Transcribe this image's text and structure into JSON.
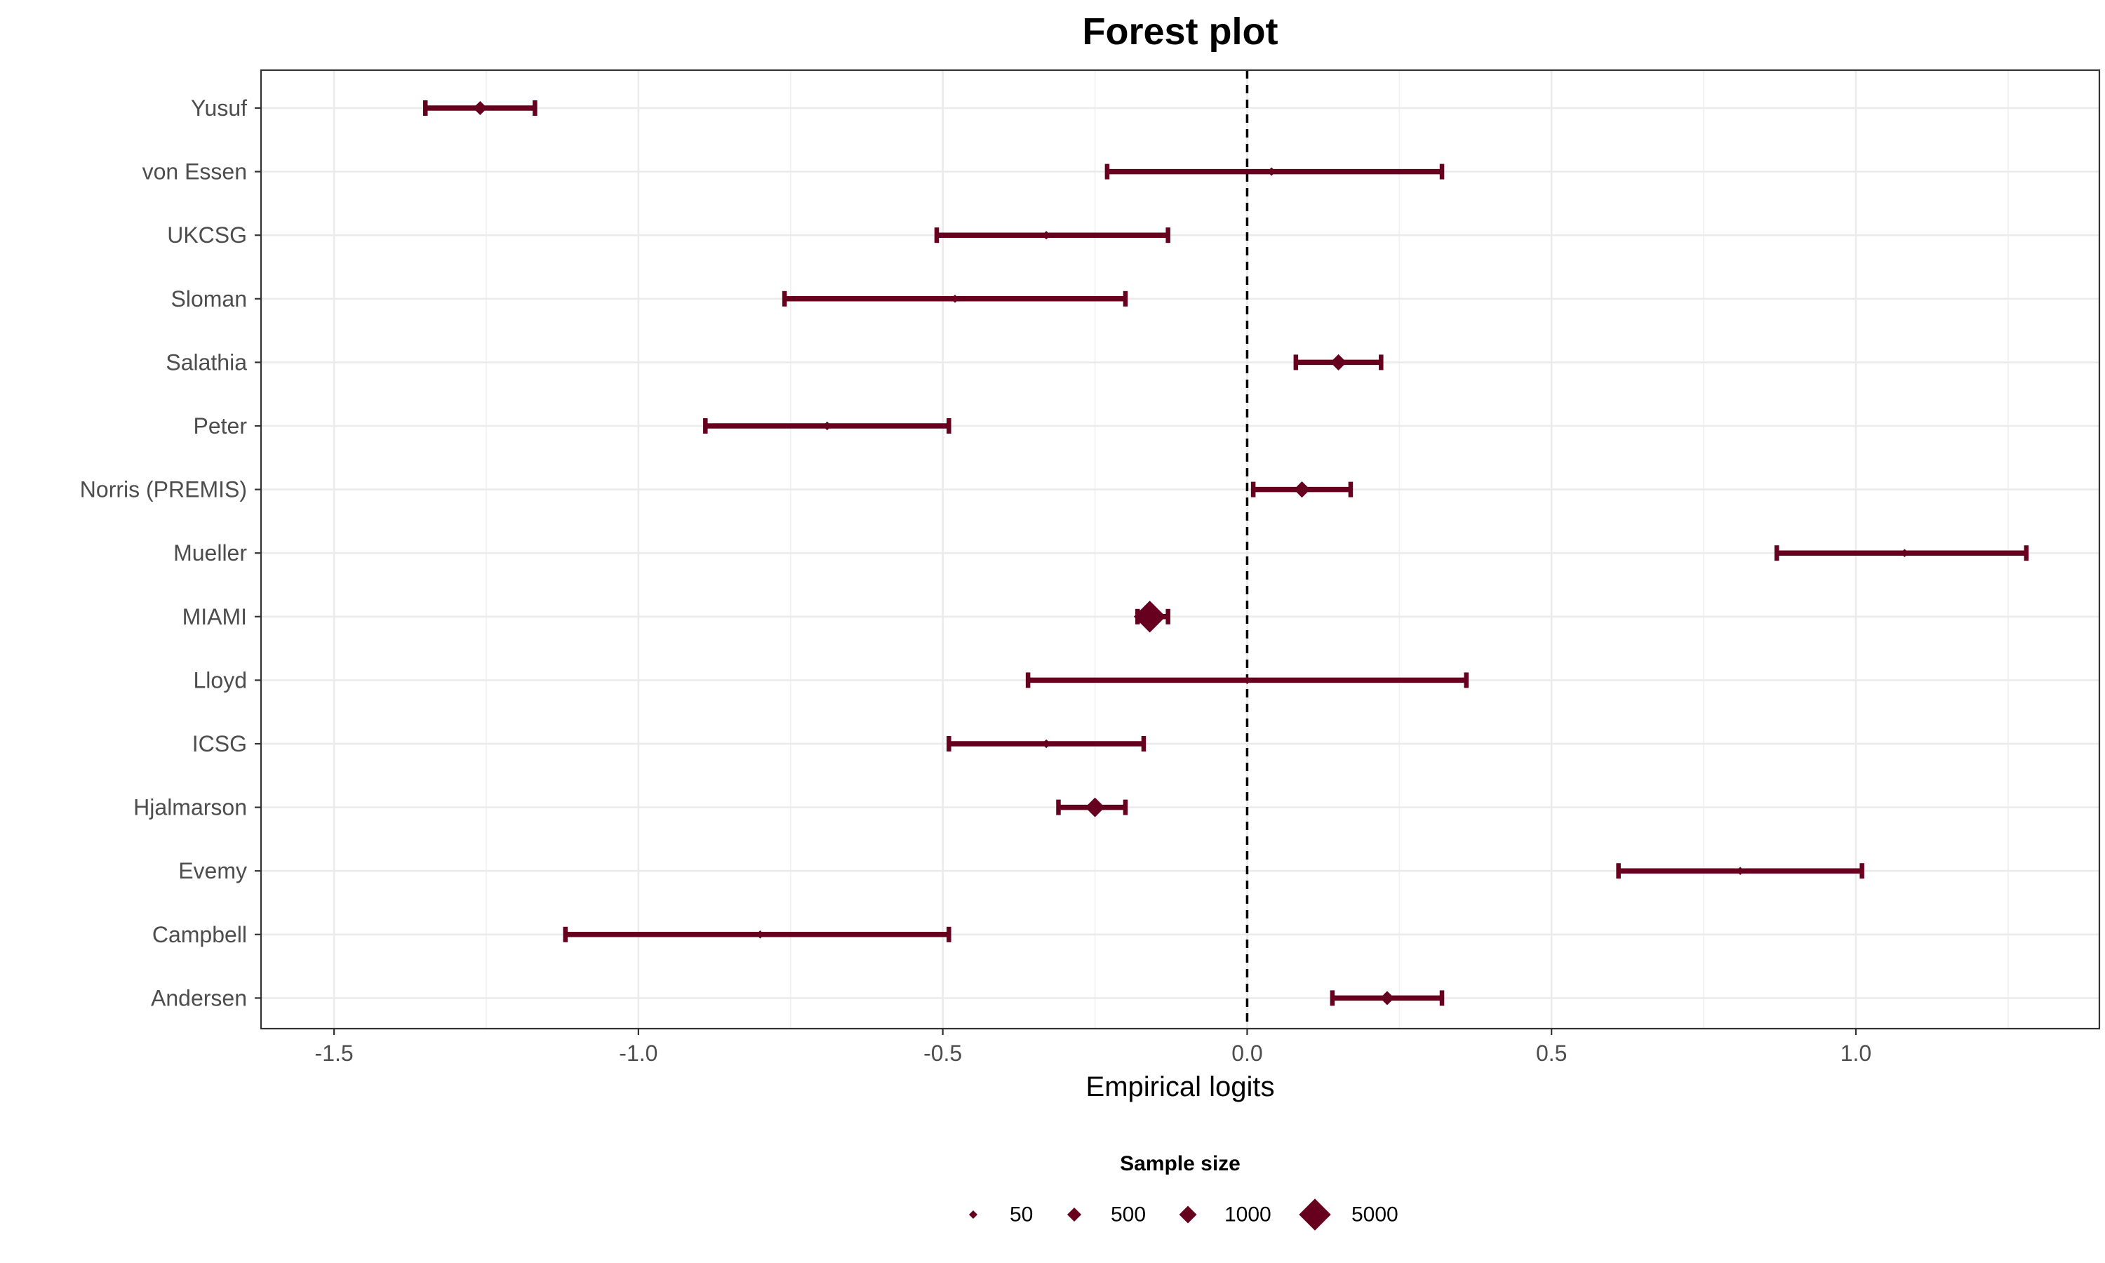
{
  "chart_data": {
    "type": "forest",
    "title": "Forest plot",
    "xlabel": "Empirical logits",
    "ylabel": "",
    "xlim": [
      -1.62,
      1.4
    ],
    "x_ticks": [
      -1.5,
      -1.0,
      -0.5,
      0.0,
      0.5,
      1.0
    ],
    "x_tick_labels": [
      "-1.5",
      "-1.0",
      "-0.5",
      "0.0",
      "0.5",
      "1.0"
    ],
    "reference_line": 0.0,
    "grid": true,
    "color": "#67001f",
    "studies": [
      {
        "name": "Yusuf",
        "estimate": -1.26,
        "lower": -1.35,
        "upper": -1.17,
        "n": 500
      },
      {
        "name": "von Essen",
        "estimate": 0.04,
        "lower": -0.23,
        "upper": 0.32,
        "n": 50
      },
      {
        "name": "UKCSG",
        "estimate": -0.33,
        "lower": -0.51,
        "upper": -0.13,
        "n": 50
      },
      {
        "name": "Sloman",
        "estimate": -0.48,
        "lower": -0.76,
        "upper": -0.2,
        "n": 40
      },
      {
        "name": "Salathia",
        "estimate": 0.15,
        "lower": 0.08,
        "upper": 0.22,
        "n": 800
      },
      {
        "name": "Peter",
        "estimate": -0.69,
        "lower": -0.89,
        "upper": -0.49,
        "n": 60
      },
      {
        "name": "Norris (PREMIS)",
        "estimate": 0.09,
        "lower": 0.01,
        "upper": 0.17,
        "n": 800
      },
      {
        "name": "Mueller",
        "estimate": 1.08,
        "lower": 0.87,
        "upper": 1.28,
        "n": 40
      },
      {
        "name": "MIAMI",
        "estimate": -0.16,
        "lower": -0.18,
        "upper": -0.13,
        "n": 5000
      },
      {
        "name": "Lloyd",
        "estimate": 0.0,
        "lower": -0.36,
        "upper": 0.36,
        "n": 30
      },
      {
        "name": "ICSG",
        "estimate": -0.33,
        "lower": -0.49,
        "upper": -0.17,
        "n": 60
      },
      {
        "name": "Hjalmarson",
        "estimate": -0.25,
        "lower": -0.31,
        "upper": -0.2,
        "n": 1400
      },
      {
        "name": "Evemy",
        "estimate": 0.81,
        "lower": 0.61,
        "upper": 1.01,
        "n": 40
      },
      {
        "name": "Campbell",
        "estimate": -0.8,
        "lower": -1.12,
        "upper": -0.49,
        "n": 40
      },
      {
        "name": "Andersen",
        "estimate": 0.23,
        "lower": 0.14,
        "upper": 0.32,
        "n": 500
      }
    ],
    "legend": {
      "title": "Sample size",
      "position": "bottom",
      "items": [
        {
          "label": "50",
          "value": 50
        },
        {
          "label": "500",
          "value": 500
        },
        {
          "label": "1000",
          "value": 1000
        },
        {
          "label": "5000",
          "value": 5000
        }
      ]
    }
  }
}
